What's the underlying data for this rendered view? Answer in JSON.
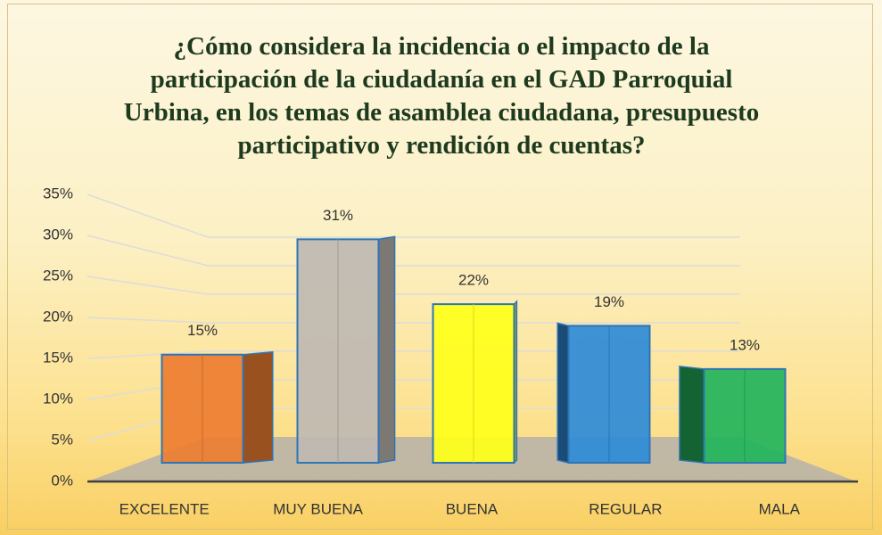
{
  "chart_data": {
    "type": "bar",
    "title": "¿Cómo considera la incidencia o el impacto de la participación de la ciudadanía en el GAD Parroquial Urbina, en los temas de asamblea ciudadana, presupuesto participativo y rendición de cuentas?",
    "categories": [
      "EXCELENTE",
      "MUY BUENA",
      "BUENA",
      "REGULAR",
      "MALA"
    ],
    "values": [
      15,
      31,
      22,
      19,
      13
    ],
    "value_labels": [
      "15%",
      "31%",
      "22%",
      "19%",
      "13%"
    ],
    "colors": [
      "#ed7d31",
      "#bfb8b2",
      "#ffff1a",
      "#2e8bd8",
      "#22b45c"
    ],
    "ylim": [
      0,
      35
    ],
    "yticks": [
      {
        "value": 0,
        "label": "0%"
      },
      {
        "value": 5,
        "label": "5%"
      },
      {
        "value": 10,
        "label": "10%"
      },
      {
        "value": 15,
        "label": "15%"
      },
      {
        "value": 20,
        "label": "20%"
      },
      {
        "value": 25,
        "label": "25%"
      },
      {
        "value": 30,
        "label": "30%"
      },
      {
        "value": 35,
        "label": "35%"
      }
    ],
    "grid": true
  }
}
